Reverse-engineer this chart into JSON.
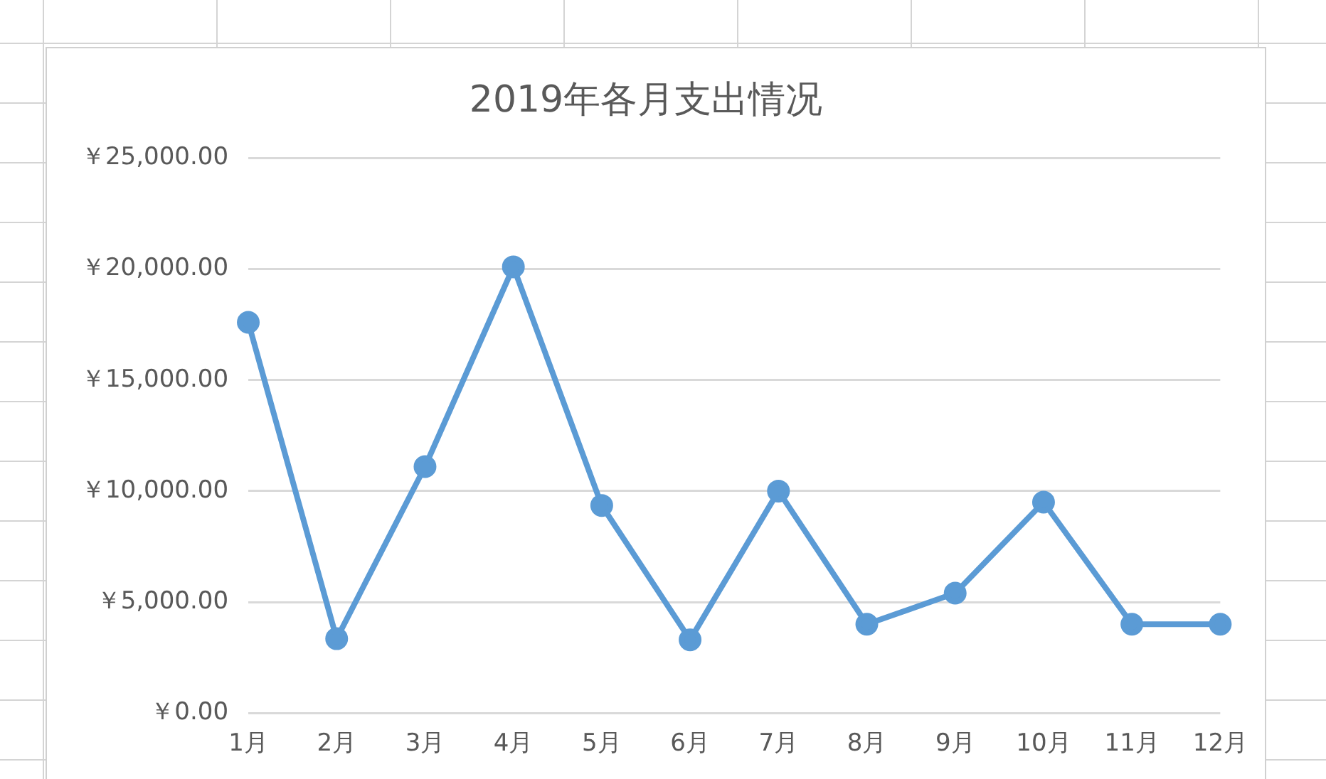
{
  "chart_data": {
    "type": "line",
    "title": "2019年各月支出情况",
    "categories": [
      "1月",
      "2月",
      "3月",
      "4月",
      "5月",
      "6月",
      "7月",
      "8月",
      "9月",
      "10月",
      "11月",
      "12月"
    ],
    "series": [
      {
        "color": "#5b9bd5",
        "values": [
          17600,
          3350,
          11100,
          20100,
          9350,
          3300,
          10000,
          4000,
          5400,
          9500,
          4000,
          4000
        ]
      }
    ],
    "ylim": [
      0,
      25000
    ],
    "yticks": [
      {
        "value": 0,
        "label": "￥0.00"
      },
      {
        "value": 5000,
        "label": "￥5,000.00"
      },
      {
        "value": 10000,
        "label": "￥10,000.00"
      },
      {
        "value": 15000,
        "label": "￥15,000.00"
      },
      {
        "value": 20000,
        "label": "￥20,000.00"
      },
      {
        "value": 25000,
        "label": "￥25,000.00"
      }
    ],
    "grid": "y",
    "legend": false,
    "marker": "circle",
    "line_style": "solid"
  }
}
